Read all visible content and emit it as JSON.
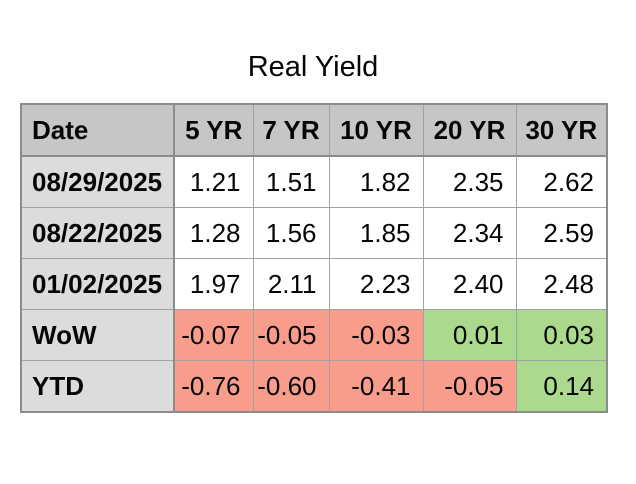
{
  "title": "Real Yield",
  "table": {
    "columns": [
      "Date",
      "5 YR",
      "7 YR",
      "10 YR",
      "20 YR",
      "30 YR"
    ],
    "rows": [
      {
        "label": "08/29/2025",
        "cells": [
          {
            "v": "1.21"
          },
          {
            "v": "1.51"
          },
          {
            "v": "1.82"
          },
          {
            "v": "2.35"
          },
          {
            "v": "2.62"
          }
        ]
      },
      {
        "label": "08/22/2025",
        "cells": [
          {
            "v": "1.28"
          },
          {
            "v": "1.56"
          },
          {
            "v": "1.85"
          },
          {
            "v": "2.34"
          },
          {
            "v": "2.59"
          }
        ]
      },
      {
        "label": "01/02/2025",
        "cells": [
          {
            "v": "1.97"
          },
          {
            "v": "2.11"
          },
          {
            "v": "2.23"
          },
          {
            "v": "2.40"
          },
          {
            "v": "2.48"
          }
        ]
      },
      {
        "label": "WoW",
        "cells": [
          {
            "v": "-0.07",
            "bg": "#f89c8c"
          },
          {
            "v": "-0.05",
            "bg": "#f89c8c"
          },
          {
            "v": "-0.03",
            "bg": "#f89c8c"
          },
          {
            "v": "0.01",
            "bg": "#abd98e"
          },
          {
            "v": "0.03",
            "bg": "#abd98e"
          }
        ]
      },
      {
        "label": "YTD",
        "cells": [
          {
            "v": "-0.76",
            "bg": "#f89c8c"
          },
          {
            "v": "-0.60",
            "bg": "#f89c8c"
          },
          {
            "v": "-0.41",
            "bg": "#f89c8c"
          },
          {
            "v": "-0.05",
            "bg": "#f89c8c"
          },
          {
            "v": "0.14",
            "bg": "#abd98e"
          }
        ]
      }
    ]
  },
  "colors": {
    "negative_bg": "#f89c8c",
    "positive_bg": "#abd98e",
    "header_bg": "#c6c6c6",
    "label_bg": "#dcdcdc",
    "border": "#8c8c8c"
  },
  "chart_data": {
    "type": "table",
    "title": "Real Yield",
    "columns": [
      "Date",
      "5 YR",
      "7 YR",
      "10 YR",
      "20 YR",
      "30 YR"
    ],
    "rows": [
      [
        "08/29/2025",
        1.21,
        1.51,
        1.82,
        2.35,
        2.62
      ],
      [
        "08/22/2025",
        1.28,
        1.56,
        1.85,
        2.34,
        2.59
      ],
      [
        "01/02/2025",
        1.97,
        2.11,
        2.23,
        2.4,
        2.48
      ],
      [
        "WoW",
        -0.07,
        -0.05,
        -0.03,
        0.01,
        0.03
      ],
      [
        "YTD",
        -0.76,
        -0.6,
        -0.41,
        -0.05,
        0.14
      ]
    ],
    "notes": "WoW and YTD rows: negative values shaded salmon red, positive values shaded light green"
  }
}
